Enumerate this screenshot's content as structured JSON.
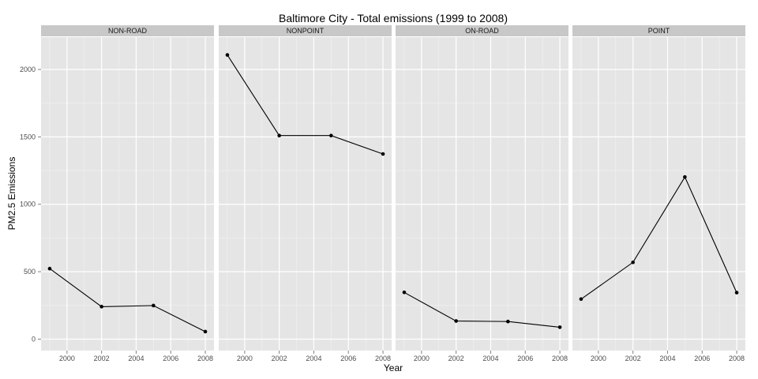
{
  "chart_data": {
    "type": "line",
    "title": "Baltimore City - Total emissions (1999 to 2008)",
    "xlabel": "Year",
    "ylabel": "PM2.5 Emissions",
    "xlim": [
      1998.5,
      2008.5
    ],
    "ylim": [
      -85,
      2240
    ],
    "x_ticks": [
      2000,
      2002,
      2004,
      2006,
      2008
    ],
    "y_ticks": [
      0,
      500,
      1000,
      1500,
      2000
    ],
    "grid": true,
    "x": [
      1999,
      2002,
      2005,
      2008
    ],
    "panels": [
      {
        "name": "NON-ROAD",
        "values": [
          522.94,
          240.85,
          248.93,
          55.82
        ]
      },
      {
        "name": "NONPOINT",
        "values": [
          2107.63,
          1509.5,
          1509.5,
          1373.21
        ]
      },
      {
        "name": "ON-ROAD",
        "values": [
          346.82,
          134.31,
          130.43,
          88.28
        ]
      },
      {
        "name": "POINT",
        "values": [
          296.8,
          569.26,
          1202.49,
          344.98
        ]
      }
    ]
  }
}
